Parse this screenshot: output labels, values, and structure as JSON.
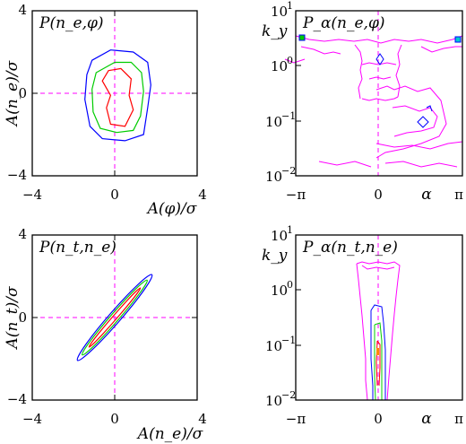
{
  "colors": {
    "magenta": "#ff00ff",
    "blue": "#0000ff",
    "green": "#00cc00",
    "red": "#ff0000",
    "cyan": "#00cccc",
    "orange": "#ff8800",
    "frame": "#000000"
  },
  "chart_data": [
    {
      "type": "contour",
      "title": "P(n_e,φ)",
      "xlabel": "A(φ)/σ",
      "ylabel": "A(n_e)/σ",
      "xlim": [
        -4,
        4
      ],
      "ylim": [
        -4,
        4
      ],
      "xticklabels": [
        "−4",
        "0",
        "4"
      ],
      "yticklabels": [
        "4",
        "0",
        "−4"
      ],
      "reference_lines": {
        "x": 0,
        "y": 0,
        "color": "magenta"
      },
      "contours": [
        {
          "color": "blue",
          "points": [
            [
              -1.1,
              1.6
            ],
            [
              -0.2,
              2.1
            ],
            [
              0.9,
              2.0
            ],
            [
              1.6,
              1.5
            ],
            [
              1.75,
              0.4
            ],
            [
              1.6,
              -0.7
            ],
            [
              1.4,
              -2.0
            ],
            [
              0.5,
              -2.3
            ],
            [
              -0.6,
              -2.2
            ],
            [
              -1.2,
              -1.6
            ],
            [
              -1.45,
              -0.3
            ],
            [
              -1.35,
              0.9
            ]
          ]
        },
        {
          "color": "green",
          "points": [
            [
              -0.9,
              1.0
            ],
            [
              0,
              1.5
            ],
            [
              0.8,
              1.5
            ],
            [
              1.3,
              1.0
            ],
            [
              1.4,
              0.1
            ],
            [
              1.25,
              -1.1
            ],
            [
              0.9,
              -1.8
            ],
            [
              0.1,
              -1.9
            ],
            [
              -0.7,
              -1.7
            ],
            [
              -1.05,
              -0.9
            ],
            [
              -1.1,
              0.2
            ]
          ]
        },
        {
          "color": "red",
          "points": [
            [
              -0.6,
              0.6
            ],
            [
              -0.3,
              1.1
            ],
            [
              0.3,
              1.2
            ],
            [
              0.8,
              0.7
            ],
            [
              0.7,
              -0.1
            ],
            [
              0.9,
              -0.8
            ],
            [
              0.5,
              -1.6
            ],
            [
              -0.2,
              -1.5
            ],
            [
              -0.4,
              -0.7
            ],
            [
              -0.2,
              -0.1
            ]
          ]
        }
      ]
    },
    {
      "type": "contour",
      "title": "P_α(n_e,φ)",
      "xlabel": "α",
      "ylabel": "k_y",
      "xlim": [
        -3.14159,
        3.14159
      ],
      "ylim": [
        0.01,
        10
      ],
      "yscale": "log",
      "xticklabels": [
        "−π",
        "0",
        "π"
      ],
      "ytick_bases": [
        "10",
        "10",
        "10",
        "10"
      ],
      "ytick_exponents": [
        "1",
        "0",
        "−1",
        "−2"
      ],
      "reference_lines": {
        "x": 0,
        "color": "magenta"
      }
    },
    {
      "type": "contour",
      "title": "P(n_t,n_e)",
      "xlabel": "A(n_e)/σ",
      "ylabel": "A(n_t)/σ",
      "xlim": [
        -4,
        4
      ],
      "ylim": [
        -4,
        4
      ],
      "xticklabels": [
        "−4",
        "0",
        "4"
      ],
      "yticklabels": [
        "4",
        "0",
        "−4"
      ],
      "reference_lines": {
        "x": 0,
        "y": 0,
        "color": "magenta"
      },
      "contours": [
        {
          "color": "blue",
          "ellipse": {
            "cx": 0,
            "cy": 0,
            "rx": 2.75,
            "ry": 0.28,
            "angle_deg": 49
          }
        },
        {
          "color": "green",
          "ellipse": {
            "cx": 0,
            "cy": 0,
            "rx": 2.4,
            "ry": 0.2,
            "angle_deg": 49
          }
        },
        {
          "color": "red",
          "ellipse": {
            "cx": 0,
            "cy": 0,
            "rx": 1.9,
            "ry": 0.1,
            "angle_deg": 49
          }
        }
      ]
    },
    {
      "type": "contour",
      "title": "P_α(n_t,n_e)",
      "xlabel": "α",
      "ylabel": "k_y",
      "xlim": [
        -3.14159,
        3.14159
      ],
      "ylim": [
        0.01,
        10
      ],
      "yscale": "log",
      "xticklabels": [
        "−π",
        "0",
        "π"
      ],
      "ytick_bases": [
        "10",
        "10",
        "10",
        "10"
      ],
      "ytick_exponents": [
        "1",
        "0",
        "−1",
        "−2"
      ],
      "reference_lines": {
        "x": 0,
        "color": "magenta"
      }
    }
  ]
}
